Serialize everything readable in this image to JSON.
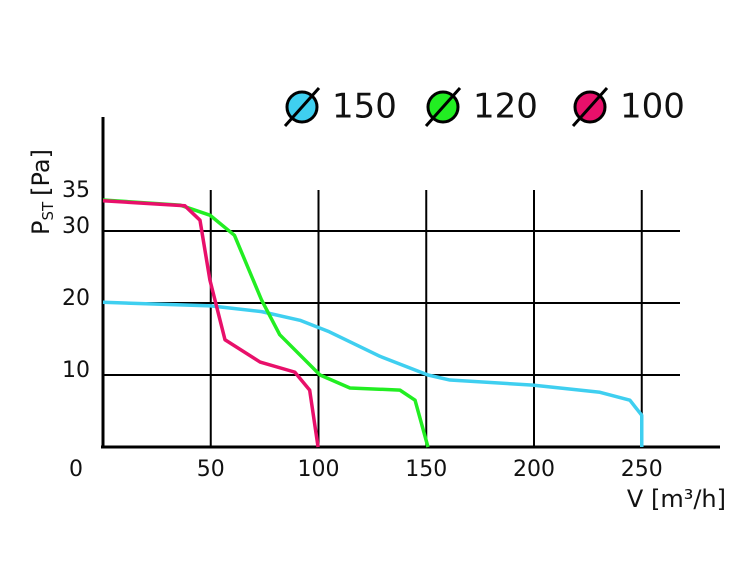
{
  "chart_data": {
    "type": "line",
    "xlabel": "V [m³/h]",
    "ylabel": {
      "main": "P",
      "sub": "ST",
      "unit": "[Pa]"
    },
    "xlim": [
      0,
      280
    ],
    "ylim": [
      0,
      46
    ],
    "xticks": [
      0,
      50,
      100,
      150,
      200,
      250
    ],
    "yticks": [
      10,
      20,
      30,
      35
    ],
    "xgrid": [
      50,
      100,
      150,
      200,
      250
    ],
    "ygrid": [
      10,
      20,
      30
    ],
    "series": [
      {
        "name": "150",
        "color": "#3fcff0",
        "x": [
          0,
          50,
          73.6,
          91.4,
          105,
          128.5,
          150.8,
          161,
          199.5,
          230.6,
          244.5,
          250,
          250
        ],
        "values": [
          20.1,
          19.6,
          18.8,
          17.6,
          16,
          12.6,
          10,
          9.3,
          8.6,
          7.6,
          6.5,
          4.4,
          0
        ]
      },
      {
        "name": "120",
        "color": "#22ee22",
        "x": [
          0,
          35.7,
          49.6,
          61,
          73.6,
          82,
          100.7,
          114.6,
          137.8,
          144.8,
          150.8
        ],
        "values": [
          34.3,
          33.6,
          32.2,
          29.4,
          20.4,
          15.6,
          10,
          8.2,
          7.9,
          6.5,
          0
        ]
      },
      {
        "name": "100",
        "color": "#e8106a",
        "x": [
          0,
          38,
          45,
          49.6,
          56.6,
          72.9,
          89,
          95.9,
          99.8
        ],
        "values": [
          34.2,
          33.5,
          31.5,
          23.2,
          14.9,
          11.8,
          10.4,
          7.9,
          0
        ]
      }
    ]
  }
}
